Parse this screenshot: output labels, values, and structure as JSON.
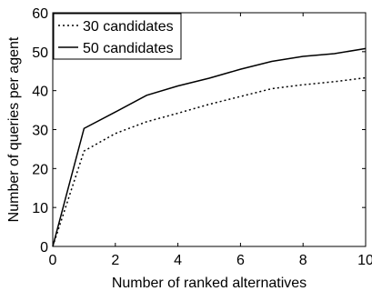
{
  "chart_data": {
    "type": "line",
    "xlabel": "Number of ranked alternatives",
    "ylabel": "Number of queries per agent",
    "xlim": [
      0,
      10
    ],
    "ylim": [
      0,
      60
    ],
    "xticks": [
      0,
      2,
      4,
      6,
      8,
      10
    ],
    "yticks": [
      0,
      10,
      20,
      30,
      40,
      50,
      60
    ],
    "grid": false,
    "legend_position": "top-left",
    "series": [
      {
        "name": "30 candidates",
        "style": "dotted",
        "x": [
          0,
          1,
          2,
          3,
          4,
          5,
          6,
          7,
          8,
          9,
          10
        ],
        "values": [
          0,
          24.5,
          29,
          32,
          34.2,
          36.5,
          38.5,
          40.5,
          41.5,
          42.3,
          43.3
        ]
      },
      {
        "name": "50 candidates",
        "style": "solid",
        "x": [
          0,
          1,
          2,
          3,
          4,
          5,
          6,
          7,
          8,
          9,
          10
        ],
        "values": [
          0,
          30.3,
          34.5,
          38.8,
          41.2,
          43.2,
          45.5,
          47.5,
          48.8,
          49.5,
          50.8
        ]
      }
    ]
  }
}
